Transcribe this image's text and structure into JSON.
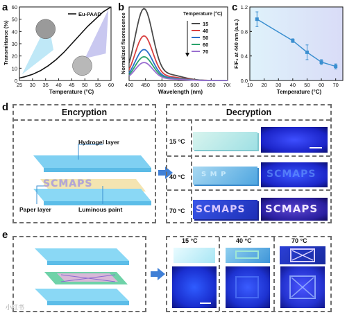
{
  "panel_labels": {
    "a": "a",
    "b": "b",
    "c": "c",
    "d": "d",
    "e": "e"
  },
  "chart_data": [
    {
      "type": "line",
      "panel": "a",
      "legend": "Eu-PAAD",
      "xlabel": "Temperature (°C)",
      "ylabel": "Transmittance (%)",
      "xlim": [
        25,
        60
      ],
      "ylim": [
        0,
        60
      ],
      "xticks": [
        "25",
        "30",
        "35",
        "40",
        "45",
        "50",
        "55",
        "60"
      ],
      "yticks": [
        "0",
        "10",
        "20",
        "30",
        "40",
        "50",
        "60"
      ],
      "x": [
        25,
        27,
        30,
        33,
        36,
        39,
        42,
        45,
        48,
        51,
        54,
        57,
        60
      ],
      "y": [
        2,
        3,
        5,
        8,
        12,
        17,
        23,
        30,
        37,
        44,
        50,
        56,
        60
      ]
    },
    {
      "type": "line",
      "panel": "b",
      "xlabel": "Wavelength (nm)",
      "ylabel": "Normalized fluorescence",
      "xlim": [
        400,
        700
      ],
      "xticks": [
        "400",
        "450",
        "500",
        "550",
        "600",
        "650",
        "700"
      ],
      "legend_title": "Temperature (°C)",
      "series": [
        {
          "name": "15",
          "color": "#4a4a4a",
          "peak": 1.0
        },
        {
          "name": "40",
          "color": "#d94040",
          "peak": 0.62
        },
        {
          "name": "50",
          "color": "#2a6fc9",
          "peak": 0.43
        },
        {
          "name": "60",
          "color": "#2aa36b",
          "peak": 0.33
        },
        {
          "name": "70",
          "color": "#9a6fd0",
          "peak": 0.25
        }
      ]
    },
    {
      "type": "scatter",
      "panel": "c",
      "xlabel": "Temperature (°C)",
      "ylabel": "F/F₀ at 440 nm (a.u.)",
      "xlim": [
        10,
        75
      ],
      "ylim": [
        0.0,
        1.2
      ],
      "xticks": [
        "10",
        "20",
        "30",
        "40",
        "50",
        "60",
        "70"
      ],
      "yticks": [
        "0.0",
        "0.4",
        "0.8",
        "1.2"
      ],
      "x": [
        15,
        40,
        50,
        60,
        70
      ],
      "y": [
        1.0,
        0.65,
        0.46,
        0.3,
        0.23
      ],
      "err": [
        0.12,
        0.03,
        0.12,
        0.04,
        0.04
      ]
    }
  ],
  "d": {
    "enc_title": "Encryption",
    "dec_title": "Decryption",
    "hydrogel": "Hydrogel layer",
    "paper": "Paper layer",
    "paint": "Luminous paint",
    "word": "SCMAPS",
    "partial": "S   M   P",
    "rows": [
      "15 °C",
      "40 °C",
      "70 °C"
    ]
  },
  "e": {
    "cols": [
      "15 °C",
      "40 °C",
      "70 °C"
    ]
  },
  "watermark": "小红书"
}
